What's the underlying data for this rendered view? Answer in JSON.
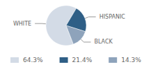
{
  "chart_data": {
    "type": "pie",
    "categories": [
      "WHITE",
      "HISPANIC",
      "BLACK"
    ],
    "values": [
      64.3,
      21.4,
      14.3
    ],
    "value_labels": [
      "64.3%",
      "21.4%",
      "14.3%"
    ],
    "colors": [
      "#d3dbe6",
      "#2f5f86",
      "#8ea3bb"
    ]
  }
}
